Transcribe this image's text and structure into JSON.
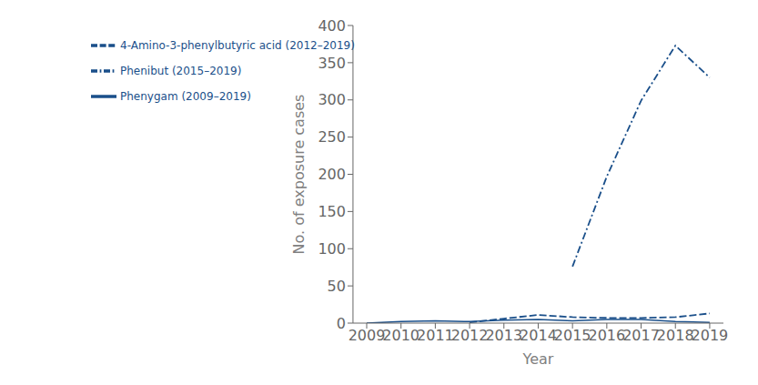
{
  "chart_data": {
    "type": "line",
    "xlabel": "Year",
    "ylabel": "No. of exposure cases",
    "xlim": [
      2008.6,
      2019.4
    ],
    "xticks": [
      2009,
      2010,
      2011,
      2012,
      2013,
      2014,
      2015,
      2016,
      2017,
      2018,
      2019
    ],
    "ylim": [
      0,
      400
    ],
    "yticks": [
      0,
      50,
      100,
      150,
      200,
      250,
      300,
      350,
      400
    ],
    "grid": false,
    "legend": "upper left",
    "series": [
      {
        "name": "Phenibut (2015–2019)",
        "color": "#1a4f8a",
        "line_style": "dashdot",
        "x": [
          2015,
          2016,
          2017,
          2018,
          2019
        ],
        "values": [
          76,
          197,
          299,
          373,
          330
        ]
      },
      {
        "name": "Phenygam (2009–2019)",
        "color": "#1a4f8a",
        "line_style": "solid",
        "x": [
          2009,
          2010,
          2011,
          2012,
          2013,
          2014,
          2015,
          2016,
          2017,
          2018,
          2019
        ],
        "values": [
          0,
          2,
          3,
          2,
          4,
          5,
          3,
          5,
          5,
          2,
          1
        ]
      },
      {
        "name": "4-Amino-3-phenylbutyric acid (2012–2019)",
        "color": "#1a4f8a",
        "line_style": "dashed",
        "x": [
          2012,
          2013,
          2014,
          2015,
          2016,
          2017,
          2018,
          2019
        ],
        "values": [
          1,
          6,
          11,
          8,
          7,
          7,
          8,
          13
        ]
      }
    ]
  }
}
